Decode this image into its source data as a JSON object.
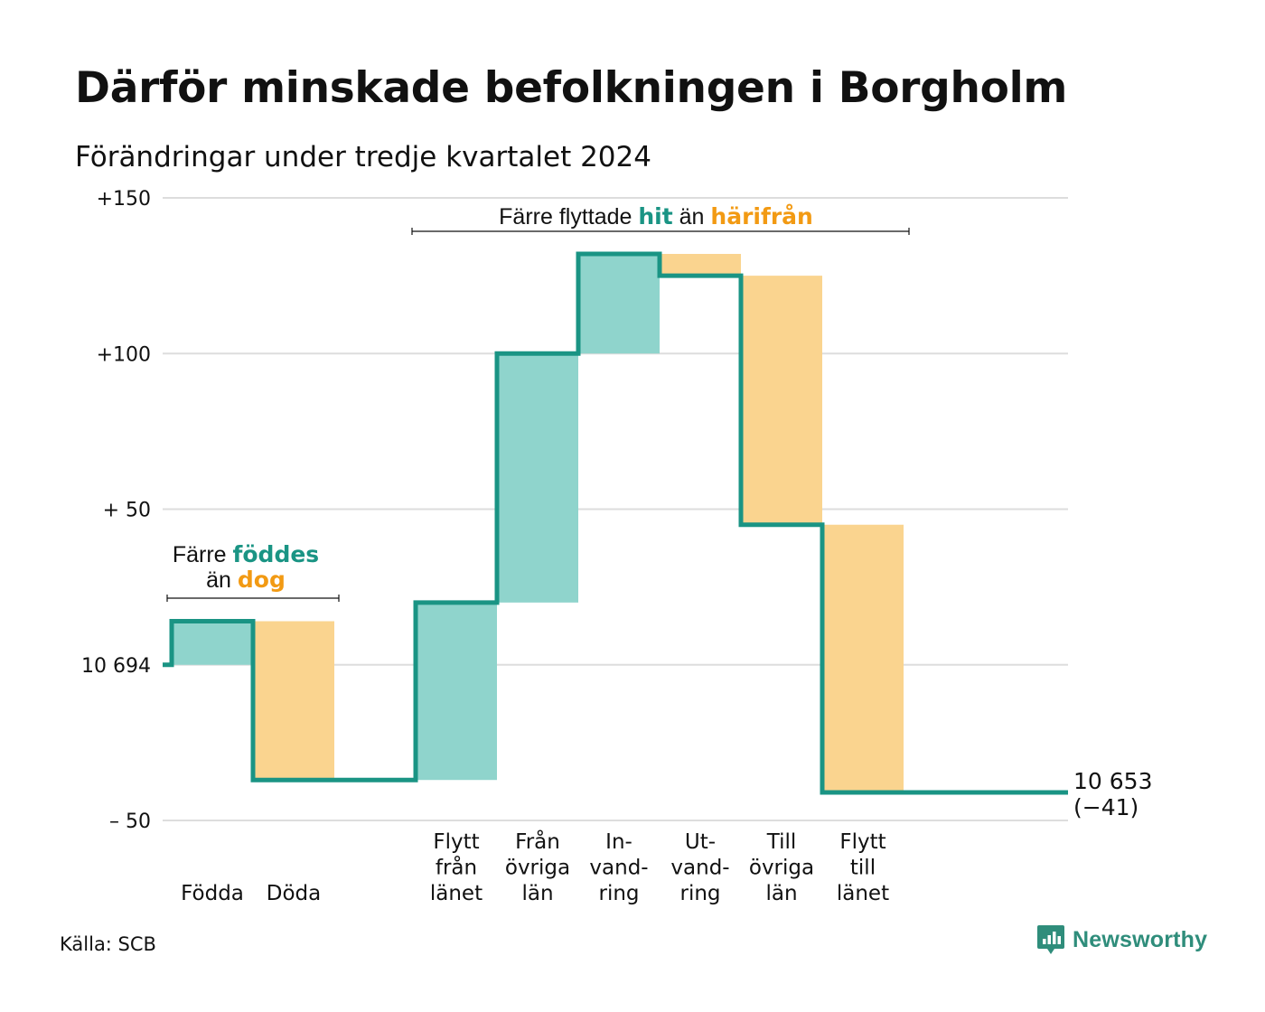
{
  "title": "Därför minskade befolkningen i Borgholm",
  "subtitle": "Förändringar under tredje kvartalet 2024",
  "source": "Källa: SCB",
  "brand": {
    "name": "Newsworthy",
    "icon": "newsworthy-logo-icon"
  },
  "colors": {
    "inflow": "#8fd4cc",
    "outflow": "#fad48f",
    "line": "#1a9484",
    "accent_teal": "#1a9484",
    "accent_orange": "#f29a13",
    "grid": "#dddddd"
  },
  "chart_data": {
    "type": "waterfall",
    "baseline_value": 10694,
    "y_ticks": [
      {
        "value": 150,
        "label": "+150"
      },
      {
        "value": 100,
        "label": "+100"
      },
      {
        "value": 50,
        "label": "+ 50"
      },
      {
        "value": 0,
        "label": "10 694"
      },
      {
        "value": -50,
        "label": "– 50"
      }
    ],
    "ylim": [
      -50,
      150
    ],
    "steps": [
      {
        "key": "fodda",
        "label": [
          "Födda"
        ],
        "change": 14,
        "kind": "inflow"
      },
      {
        "key": "doda",
        "label": [
          "Döda"
        ],
        "change": -51,
        "kind": "outflow"
      },
      {
        "key": "gap",
        "label": [],
        "change": 0,
        "kind": "none"
      },
      {
        "key": "flytt-fran-lanet",
        "label": [
          "Flytt",
          "från",
          "länet"
        ],
        "change": 57,
        "kind": "inflow"
      },
      {
        "key": "fran-ovriga-lan",
        "label": [
          "Från",
          "övriga",
          "län"
        ],
        "change": 80,
        "kind": "inflow"
      },
      {
        "key": "invandring",
        "label": [
          "In-",
          "vand-",
          "ring"
        ],
        "change": 32,
        "kind": "inflow"
      },
      {
        "key": "utvandring",
        "label": [
          "Ut-",
          "vand-",
          "ring"
        ],
        "change": -7,
        "kind": "outflow"
      },
      {
        "key": "till-ovriga-lan",
        "label": [
          "Till",
          "övriga",
          "län"
        ],
        "change": -80,
        "kind": "outflow"
      },
      {
        "key": "flytt-till-lanet",
        "label": [
          "Flytt",
          "till",
          "länet"
        ],
        "change": -86,
        "kind": "outflow"
      }
    ],
    "end_label": {
      "value": "10 653",
      "change": "(−41)",
      "net": -41
    },
    "annotations": [
      {
        "key": "births",
        "parts": [
          {
            "line": 1,
            "text": "Färre ",
            "color": "text"
          },
          {
            "line": 1,
            "text": "föddes",
            "color": "teal"
          },
          {
            "line": 2,
            "text": "än ",
            "color": "text"
          },
          {
            "line": 2,
            "text": "dog",
            "color": "orange"
          }
        ]
      },
      {
        "key": "moves",
        "parts": [
          {
            "line": 1,
            "text": "Färre flyttade ",
            "color": "text"
          },
          {
            "line": 1,
            "text": "hit",
            "color": "teal"
          },
          {
            "line": 1,
            "text": " än ",
            "color": "text"
          },
          {
            "line": 1,
            "text": "härifrån",
            "color": "orange"
          }
        ]
      }
    ]
  }
}
